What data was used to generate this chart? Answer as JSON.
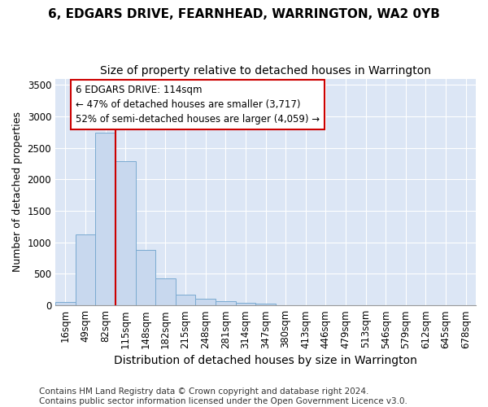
{
  "title": "6, EDGARS DRIVE, FEARNHEAD, WARRINGTON, WA2 0YB",
  "subtitle": "Size of property relative to detached houses in Warrington",
  "xlabel": "Distribution of detached houses by size in Warrington",
  "ylabel": "Number of detached properties",
  "categories": [
    "16sqm",
    "49sqm",
    "82sqm",
    "115sqm",
    "148sqm",
    "182sqm",
    "215sqm",
    "248sqm",
    "281sqm",
    "314sqm",
    "347sqm",
    "380sqm",
    "413sqm",
    "446sqm",
    "479sqm",
    "513sqm",
    "546sqm",
    "579sqm",
    "612sqm",
    "645sqm",
    "678sqm"
  ],
  "values": [
    50,
    1120,
    2740,
    2290,
    880,
    430,
    175,
    100,
    65,
    45,
    30,
    0,
    0,
    0,
    0,
    0,
    0,
    0,
    0,
    0,
    0
  ],
  "bar_color": "#c8d8ee",
  "bar_edge_color": "#7aaad0",
  "vline_color": "#cc0000",
  "annotation_text": "6 EDGARS DRIVE: 114sqm\n← 47% of detached houses are smaller (3,717)\n52% of semi-detached houses are larger (4,059) →",
  "annotation_box_color": "white",
  "annotation_box_edge_color": "#cc0000",
  "ylim": [
    0,
    3600
  ],
  "yticks": [
    0,
    500,
    1000,
    1500,
    2000,
    2500,
    3000,
    3500
  ],
  "figure_bg": "white",
  "plot_bg": "#dce6f5",
  "footer": "Contains HM Land Registry data © Crown copyright and database right 2024.\nContains public sector information licensed under the Open Government Licence v3.0.",
  "title_fontsize": 11,
  "subtitle_fontsize": 10,
  "xlabel_fontsize": 10,
  "ylabel_fontsize": 9,
  "tick_fontsize": 8.5,
  "footer_fontsize": 7.5,
  "annot_fontsize": 8.5
}
